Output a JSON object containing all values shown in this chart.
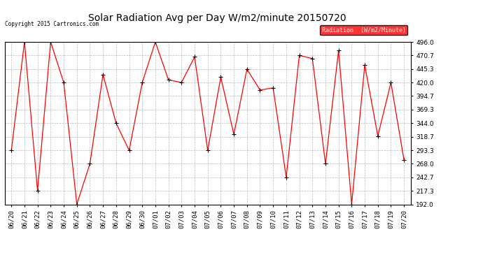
{
  "title": "Solar Radiation Avg per Day W/m2/minute 20150720",
  "copyright_text": "Copyright 2015 Cartronics.com",
  "legend_label": "Radiation  (W/m2/Minute)",
  "dates": [
    "06/20",
    "06/21",
    "06/22",
    "06/23",
    "06/24",
    "06/25",
    "06/26",
    "06/27",
    "06/28",
    "06/29",
    "06/30",
    "07/01",
    "07/02",
    "07/03",
    "07/04",
    "07/05",
    "07/06",
    "07/07",
    "07/08",
    "07/09",
    "07/10",
    "07/11",
    "07/12",
    "07/13",
    "07/14",
    "07/15",
    "07/16",
    "07/17",
    "07/18",
    "07/19",
    "07/20"
  ],
  "values": [
    293.3,
    496.0,
    217.3,
    496.0,
    420.0,
    192.0,
    268.0,
    435.0,
    344.0,
    293.0,
    420.0,
    496.0,
    425.0,
    420.0,
    468.0,
    293.0,
    430.0,
    323.0,
    445.0,
    406.0,
    410.0,
    242.7,
    470.7,
    465.0,
    268.0,
    480.0,
    192.0,
    453.0,
    320.0,
    420.0,
    275.0
  ],
  "line_color": "#FF0000",
  "marker": "+",
  "marker_color": "#000000",
  "bg_color": "#FFFFFF",
  "grid_color": "#AAAAAA",
  "ylim": [
    192.0,
    496.0
  ],
  "yticks": [
    192.0,
    217.3,
    242.7,
    268.0,
    293.3,
    318.7,
    344.0,
    369.3,
    394.7,
    420.0,
    445.3,
    470.7,
    496.0
  ],
  "title_fontsize": 10,
  "tick_fontsize": 6.5,
  "legend_bg": "#FF0000",
  "legend_text_color": "#FFFFFF"
}
